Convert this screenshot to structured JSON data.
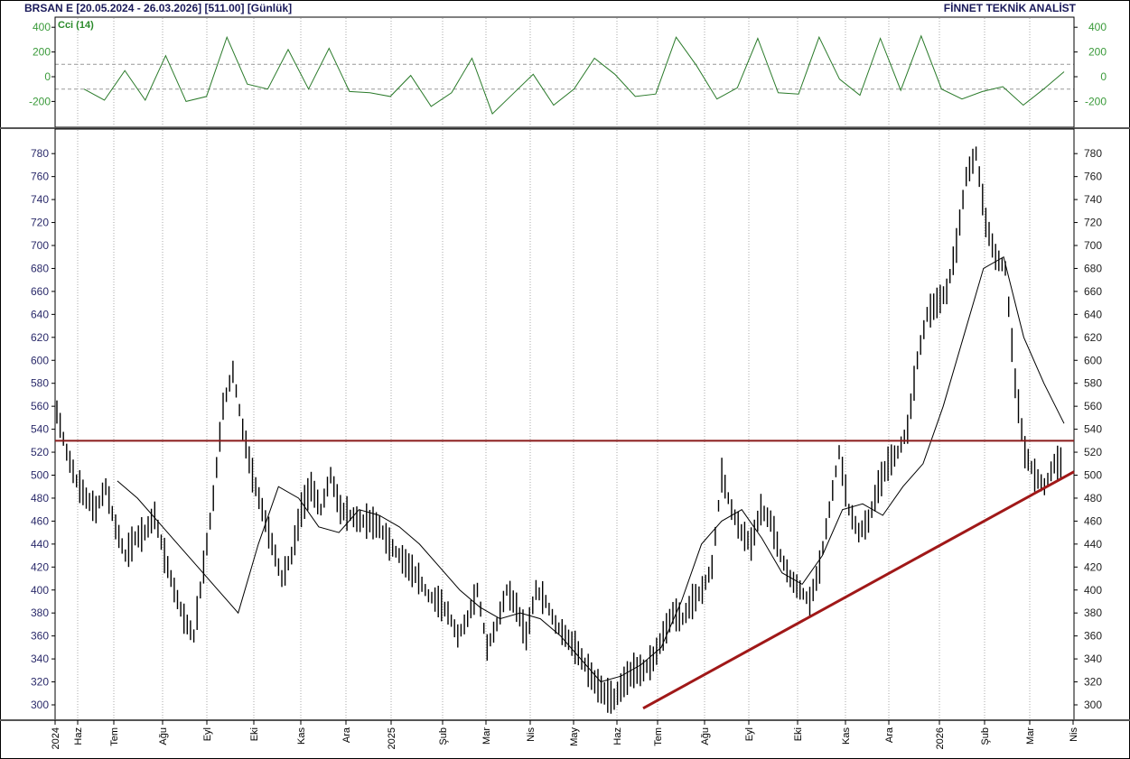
{
  "header": {
    "title_left": "BRSAN E  [20.05.2024 - 26.03.2026]  [511.00]  [Günlük]",
    "title_right": "FİNNET TEKNİK ANALİST"
  },
  "indicator": {
    "label": "Cci (14)",
    "color": "#2a7a2a"
  },
  "colors": {
    "cci": "#2a7a2a",
    "price": "#000000",
    "ma": "#000000",
    "trend": "#9a1a1a",
    "grid": "#aaaaaa"
  },
  "chart_data": [
    {
      "type": "line",
      "title": "Cci (14)",
      "ylim": [
        -400,
        400
      ],
      "yticks": [
        400,
        200,
        0,
        -200
      ],
      "reference_lines": [
        100,
        -100
      ],
      "x": [
        "Haz",
        "Tem",
        "Ağu",
        "Eyl",
        "Eki",
        "Kas",
        "Ara",
        "2025",
        "Şub",
        "Mar",
        "Nis",
        "May",
        "Haz",
        "Tem",
        "Ağu",
        "Eyl",
        "Eki",
        "Kas",
        "Ara",
        "2026",
        "Şub",
        "Mar"
      ],
      "values": [
        -100,
        -190,
        50,
        -190,
        170,
        -200,
        -160,
        320,
        -60,
        -100,
        220,
        -100,
        230,
        -120,
        -130,
        -160,
        10,
        -240,
        -130,
        150,
        -300,
        -140,
        20,
        -230,
        -100,
        150,
        20,
        -160,
        -140,
        320,
        90,
        -180,
        -90,
        310,
        -130,
        -140,
        320,
        -20,
        -150,
        310,
        -110,
        330,
        -100,
        -180,
        -120,
        -80,
        -230,
        -100,
        40
      ]
    },
    {
      "type": "bar",
      "subtype": "ohlc_bars",
      "title": "BRSAN E Günlük",
      "ylim": [
        290,
        790
      ],
      "yticks": [
        780,
        760,
        740,
        720,
        700,
        680,
        660,
        640,
        620,
        600,
        580,
        560,
        540,
        520,
        500,
        480,
        460,
        440,
        420,
        400,
        380,
        360,
        340,
        320,
        300
      ],
      "xticks": [
        "2024",
        "Haz",
        "Tem",
        "Ağu",
        "Eyl",
        "Eki",
        "Kas",
        "Ara",
        "2025",
        "Şub",
        "Mar",
        "Nis",
        "May",
        "Haz",
        "Tem",
        "Ağu",
        "Eyl",
        "Eki",
        "Kas",
        "Ara",
        "2026",
        "Şub",
        "Mar",
        "Nis"
      ],
      "close_path": [
        555,
        520,
        495,
        480,
        470,
        490,
        455,
        430,
        445,
        450,
        465,
        430,
        400,
        375,
        360,
        420,
        480,
        560,
        590,
        540,
        500,
        470,
        440,
        410,
        430,
        470,
        490,
        470,
        500,
        470,
        465,
        460,
        460,
        455,
        440,
        430,
        420,
        410,
        395,
        390,
        380,
        360,
        375,
        400,
        350,
        370,
        400,
        385,
        360,
        400,
        390,
        370,
        360,
        350,
        335,
        320,
        310,
        305,
        320,
        330,
        330,
        340,
        360,
        380,
        375,
        390,
        400,
        420,
        500,
        470,
        450,
        440,
        470,
        460,
        430,
        410,
        400,
        390,
        420,
        470,
        520,
        470,
        450,
        460,
        490,
        510,
        520,
        540,
        600,
        640,
        650,
        660,
        700,
        760,
        780,
        720,
        690,
        680,
        580,
        520,
        500,
        490,
        510,
        511
      ],
      "moving_average": [
        null,
        null,
        null,
        495,
        480,
        460,
        440,
        420,
        400,
        380,
        440,
        490,
        480,
        455,
        450,
        470,
        465,
        455,
        440,
        420,
        400,
        385,
        375,
        380,
        375,
        360,
        340,
        320,
        325,
        335,
        350,
        390,
        440,
        460,
        470,
        445,
        415,
        405,
        430,
        470,
        475,
        465,
        490,
        510,
        560,
        620,
        680,
        690,
        620,
        580,
        545
      ],
      "horizontal_line": {
        "value": 530,
        "color": "#9a1a1a"
      },
      "trend_line": {
        "from": [
          "Tem 2025",
          297
        ],
        "to": [
          "Nis 2026",
          503
        ],
        "color": "#9a1a1a"
      },
      "last_value": 511.0
    }
  ],
  "x_axis_labels": [
    "2024",
    "Haz",
    "Tem",
    "Ağu",
    "Eyl",
    "Eki",
    "Kas",
    "Ara",
    "2025",
    "Şub",
    "Mar",
    "Nis",
    "May",
    "Haz",
    "Tem",
    "Ağu",
    "Eyl",
    "Eki",
    "Kas",
    "Ara",
    "2026",
    "Şub",
    "Mar",
    "Nis"
  ]
}
